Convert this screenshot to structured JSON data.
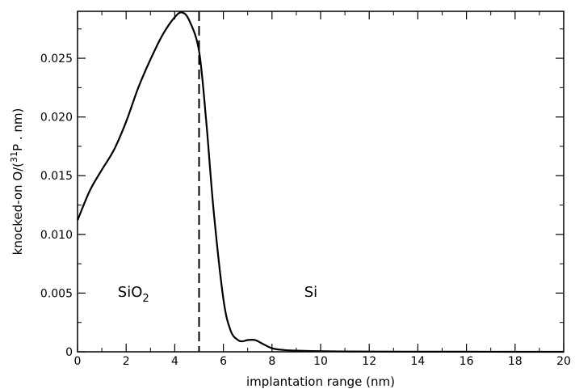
{
  "chart_data": {
    "type": "line",
    "xlabel": "implantation range (nm)",
    "ylabel": {
      "prefix": "knocked-on O/(",
      "superscript": "31",
      "suffix": "P . nm)"
    },
    "xlim": [
      0,
      20
    ],
    "ylim": [
      0,
      0.029
    ],
    "x_ticks": [
      0,
      2,
      4,
      6,
      8,
      10,
      12,
      14,
      16,
      18,
      20
    ],
    "x_tick_labels": [
      "0",
      "2",
      "4",
      "6",
      "8",
      "10",
      "12",
      "14",
      "16",
      "18",
      "20"
    ],
    "y_ticks": [
      0,
      0.005,
      0.01,
      0.015,
      0.02,
      0.025
    ],
    "y_tick_labels": [
      "0",
      "0.005",
      "0.010",
      "0.015",
      "0.020",
      "0.025"
    ],
    "grid": false,
    "series": [
      {
        "x": [
          0,
          0.5,
          1,
          1.5,
          2,
          2.5,
          3,
          3.5,
          4,
          4.3,
          4.6,
          5,
          5.3,
          5.6,
          6,
          6.3,
          6.6,
          6.8,
          7,
          7.3,
          7.6,
          8,
          8.5,
          9,
          10,
          11,
          12,
          14,
          16,
          18,
          20
        ],
        "y": [
          0.0112,
          0.0137,
          0.0155,
          0.0172,
          0.0196,
          0.0225,
          0.0249,
          0.027,
          0.0285,
          0.0289,
          0.0282,
          0.0256,
          0.0195,
          0.012,
          0.0045,
          0.0018,
          0.001,
          0.0009,
          0.001,
          0.001,
          0.0007,
          0.0003,
          0.00015,
          0.0001,
          5e-05,
          3e-05,
          2e-05,
          1e-05,
          1e-05,
          0,
          0
        ],
        "color": "#000000"
      }
    ],
    "interface_line": {
      "x": 5,
      "style": "dashed"
    },
    "annotations": [
      {
        "text": "SiO",
        "subscript": "2",
        "x": 2.3,
        "y": 0.0047
      },
      {
        "text": "Si",
        "x": 9.6,
        "y": 0.0047
      }
    ]
  }
}
